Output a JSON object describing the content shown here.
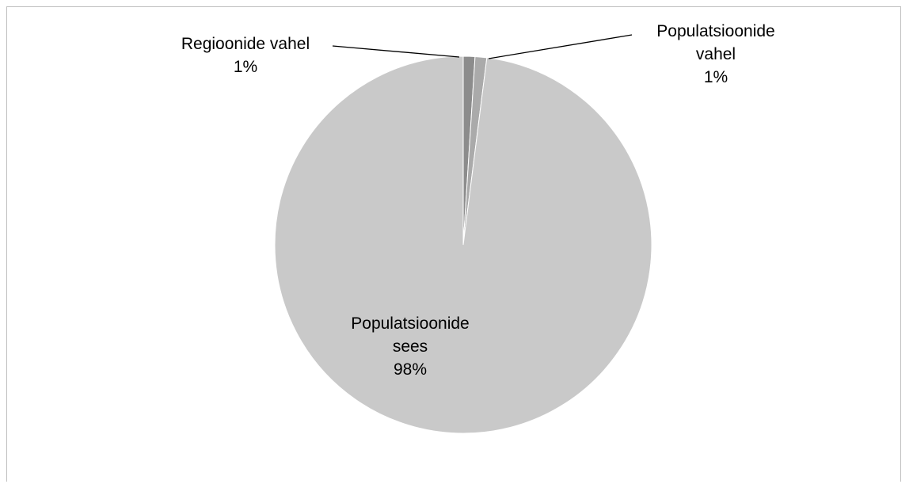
{
  "chart_data": {
    "type": "pie",
    "title": "",
    "slices": [
      {
        "label": "Regioonide vahel",
        "label_lines": [
          "Regioonide vahel",
          "1%"
        ],
        "value": 1,
        "percent_label": "1%",
        "color": "#8c8c8c"
      },
      {
        "label": "Populatsioonide vahel",
        "label_lines": [
          "Populatsioonide",
          "vahel",
          "1%"
        ],
        "value": 1,
        "percent_label": "1%",
        "color": "#aaaaaa"
      },
      {
        "label": "Populatsioonide sees",
        "label_lines": [
          "Populatsioonide",
          "sees",
          "98%"
        ],
        "value": 98,
        "percent_label": "98%",
        "color": "#c9c9c9"
      }
    ],
    "start_angle_deg": 0,
    "direction": "clockwise",
    "legend": "none",
    "label_placement": [
      "outside",
      "outside",
      "inside"
    ]
  }
}
